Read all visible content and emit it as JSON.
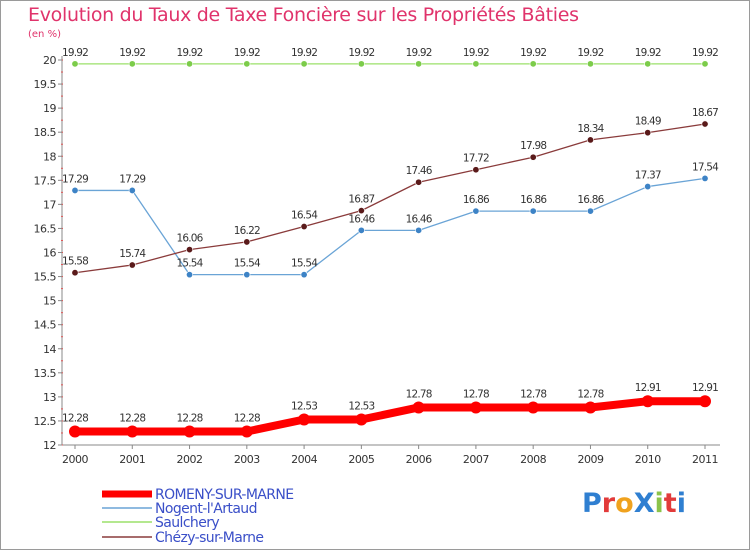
{
  "title": "Evolution du Taux de Taxe Foncière sur les Propriétés Bâties",
  "unit_label": "(en %)",
  "logo_text": "ProXiti",
  "chart_data": {
    "type": "line",
    "x": [
      "2000",
      "2001",
      "2002",
      "2003",
      "2004",
      "2005",
      "2006",
      "2007",
      "2008",
      "2009",
      "2010",
      "2011"
    ],
    "ylim": [
      12,
      20
    ],
    "yticks": [
      "12",
      "12.5",
      "13",
      "13.5",
      "14",
      "14.5",
      "15",
      "15.5",
      "16",
      "16.5",
      "17",
      "17.5",
      "18",
      "18.5",
      "19",
      "19.5",
      "20"
    ],
    "grid": false,
    "legend_position": "bottom-left",
    "series": [
      {
        "name": "ROMENY-SUR-MARNE",
        "color": "#ff0000",
        "marker": "#ff0000",
        "labels": [
          "12.28",
          "12.28",
          "12.28",
          "12.28",
          "12.53",
          "12.53",
          "12.78",
          "12.78",
          "12.78",
          "12.78",
          "12.91",
          "12.91"
        ],
        "values": [
          12.28,
          12.28,
          12.28,
          12.28,
          12.53,
          12.53,
          12.78,
          12.78,
          12.78,
          12.78,
          12.91,
          12.91
        ]
      },
      {
        "name": "Nogent-l'Artaud",
        "color": "#6aa4d6",
        "marker": "#3d83c6",
        "labels": [
          "17.29",
          "17.29",
          "15.54",
          "15.54",
          "15.54",
          "16.46",
          "16.46",
          "16.86",
          "16.86",
          "16.86",
          "17.37",
          "17.54"
        ],
        "values": [
          17.29,
          17.29,
          15.54,
          15.54,
          15.54,
          16.46,
          16.46,
          16.86,
          16.86,
          16.86,
          17.37,
          17.54
        ]
      },
      {
        "name": "Saulchery",
        "color": "#9be06a",
        "marker": "#7ccc4a",
        "labels": [
          "19.92",
          "19.92",
          "19.92",
          "19.92",
          "19.92",
          "19.92",
          "19.92",
          "19.92",
          "19.92",
          "19.92",
          "19.92",
          "19.92"
        ],
        "values": [
          19.92,
          19.92,
          19.92,
          19.92,
          19.92,
          19.92,
          19.92,
          19.92,
          19.92,
          19.92,
          19.92,
          19.92
        ]
      },
      {
        "name": "Chézy-sur-Marne",
        "color": "#8a3b3b",
        "marker": "#5a1a1a",
        "labels": [
          "15.58",
          "15.74",
          "16.06",
          "16.22",
          "16.54",
          "16.87",
          "17.46",
          "17.72",
          "17.98",
          "18.34",
          "18.49",
          "18.67"
        ],
        "values": [
          15.58,
          15.74,
          16.06,
          16.22,
          16.54,
          16.87,
          17.46,
          17.72,
          17.98,
          18.34,
          18.49,
          18.67
        ]
      }
    ]
  }
}
